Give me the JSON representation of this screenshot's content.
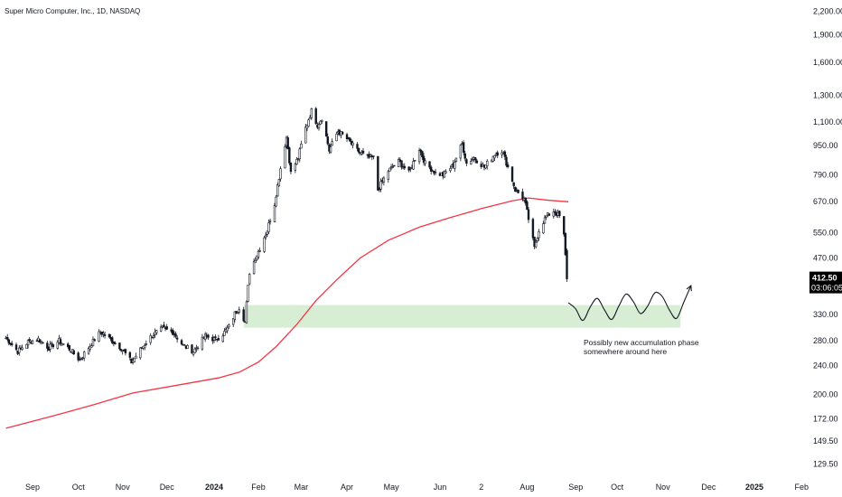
{
  "chart_data": {
    "type": "candlestick",
    "title": "Super Micro Computer, Inc., 1D, NASDAQ",
    "yscale": "log",
    "ylim": [
      118,
      2360
    ],
    "y_ticks": [
      {
        "value": 129.5,
        "label": "129.50"
      },
      {
        "value": 149.5,
        "label": "149.50"
      },
      {
        "value": 172,
        "label": "172.00"
      },
      {
        "value": 200,
        "label": "200.00"
      },
      {
        "value": 240,
        "label": "240.00"
      },
      {
        "value": 280,
        "label": "280.00"
      },
      {
        "value": 330,
        "label": "330.00"
      },
      {
        "value": 470,
        "label": "470.00"
      },
      {
        "value": 550,
        "label": "550.00"
      },
      {
        "value": 670,
        "label": "670.00"
      },
      {
        "value": 790,
        "label": "790.00"
      },
      {
        "value": 950,
        "label": "950.00"
      },
      {
        "value": 1100,
        "label": "1,100.00"
      },
      {
        "value": 1300,
        "label": "1,300.00"
      },
      {
        "value": 1600,
        "label": "1,600.00"
      },
      {
        "value": 1900,
        "label": "1,900.00"
      },
      {
        "value": 2200,
        "label": "2,200.00"
      }
    ],
    "x_ticks": [
      {
        "date": "2023-09-01",
        "label": "Sep",
        "bold": false
      },
      {
        "date": "2023-10-02",
        "label": "Oct",
        "bold": false
      },
      {
        "date": "2023-11-01",
        "label": "Nov",
        "bold": false
      },
      {
        "date": "2023-12-01",
        "label": "Dec",
        "bold": false
      },
      {
        "date": "2024-01-02",
        "label": "2024",
        "bold": true
      },
      {
        "date": "2024-02-01",
        "label": "Feb",
        "bold": false
      },
      {
        "date": "2024-03-01",
        "label": "Mar",
        "bold": false
      },
      {
        "date": "2024-04-01",
        "label": "Apr",
        "bold": false
      },
      {
        "date": "2024-05-01",
        "label": "May",
        "bold": false
      },
      {
        "date": "2024-06-03",
        "label": "Jun",
        "bold": false
      },
      {
        "date": "2024-07-01",
        "label": "2",
        "bold": false
      },
      {
        "date": "2024-08-01",
        "label": "Aug",
        "bold": false
      },
      {
        "date": "2024-09-03",
        "label": "Sep",
        "bold": false
      },
      {
        "date": "2024-10-01",
        "label": "Oct",
        "bold": false
      },
      {
        "date": "2024-11-01",
        "label": "Nov",
        "bold": false
      },
      {
        "date": "2024-12-02",
        "label": "Dec",
        "bold": false
      },
      {
        "date": "2025-01-02",
        "label": "2025",
        "bold": true
      },
      {
        "date": "2025-02-03",
        "label": "Feb",
        "bold": false
      }
    ],
    "price_path": [
      {
        "date": "2023-08-14",
        "close": 285
      },
      {
        "date": "2023-08-22",
        "close": 262
      },
      {
        "date": "2023-08-29",
        "close": 278
      },
      {
        "date": "2023-09-05",
        "close": 283
      },
      {
        "date": "2023-09-12",
        "close": 268
      },
      {
        "date": "2023-09-19",
        "close": 280
      },
      {
        "date": "2023-09-26",
        "close": 266
      },
      {
        "date": "2023-10-03",
        "close": 248
      },
      {
        "date": "2023-10-10",
        "close": 272
      },
      {
        "date": "2023-10-17",
        "close": 296
      },
      {
        "date": "2023-10-24",
        "close": 282
      },
      {
        "date": "2023-10-31",
        "close": 268
      },
      {
        "date": "2023-11-07",
        "close": 245
      },
      {
        "date": "2023-11-14",
        "close": 268
      },
      {
        "date": "2023-11-21",
        "close": 290
      },
      {
        "date": "2023-11-28",
        "close": 302
      },
      {
        "date": "2023-12-05",
        "close": 296
      },
      {
        "date": "2023-12-12",
        "close": 272
      },
      {
        "date": "2023-12-19",
        "close": 262
      },
      {
        "date": "2023-12-27",
        "close": 288
      },
      {
        "date": "2024-01-03",
        "close": 282
      },
      {
        "date": "2024-01-08",
        "close": 292
      },
      {
        "date": "2024-01-12",
        "close": 305
      },
      {
        "date": "2024-01-16",
        "close": 332
      },
      {
        "date": "2024-01-19",
        "close": 345
      },
      {
        "date": "2024-01-23",
        "close": 315
      },
      {
        "date": "2024-01-26",
        "close": 430
      },
      {
        "date": "2024-01-30",
        "close": 470
      },
      {
        "date": "2024-02-02",
        "close": 500
      },
      {
        "date": "2024-02-07",
        "close": 560
      },
      {
        "date": "2024-02-12",
        "close": 660
      },
      {
        "date": "2024-02-15",
        "close": 780
      },
      {
        "date": "2024-02-20",
        "close": 1000
      },
      {
        "date": "2024-02-23",
        "close": 800
      },
      {
        "date": "2024-02-28",
        "close": 880
      },
      {
        "date": "2024-03-04",
        "close": 1060
      },
      {
        "date": "2024-03-08",
        "close": 1180
      },
      {
        "date": "2024-03-12",
        "close": 1080
      },
      {
        "date": "2024-03-15",
        "close": 1130
      },
      {
        "date": "2024-03-20",
        "close": 920
      },
      {
        "date": "2024-03-26",
        "close": 1040
      },
      {
        "date": "2024-04-01",
        "close": 990
      },
      {
        "date": "2024-04-08",
        "close": 920
      },
      {
        "date": "2024-04-15",
        "close": 880
      },
      {
        "date": "2024-04-19",
        "close": 880
      },
      {
        "date": "2024-04-22",
        "close": 720
      },
      {
        "date": "2024-04-29",
        "close": 810
      },
      {
        "date": "2024-05-06",
        "close": 860
      },
      {
        "date": "2024-05-13",
        "close": 800
      },
      {
        "date": "2024-05-20",
        "close": 930
      },
      {
        "date": "2024-05-24",
        "close": 850
      },
      {
        "date": "2024-05-31",
        "close": 800
      },
      {
        "date": "2024-06-05",
        "close": 790
      },
      {
        "date": "2024-06-12",
        "close": 840
      },
      {
        "date": "2024-06-18",
        "close": 960
      },
      {
        "date": "2024-06-21",
        "close": 850
      },
      {
        "date": "2024-06-26",
        "close": 880
      },
      {
        "date": "2024-07-03",
        "close": 830
      },
      {
        "date": "2024-07-10",
        "close": 900
      },
      {
        "date": "2024-07-15",
        "close": 920
      },
      {
        "date": "2024-07-19",
        "close": 830
      },
      {
        "date": "2024-07-24",
        "close": 720
      },
      {
        "date": "2024-07-30",
        "close": 680
      },
      {
        "date": "2024-08-02",
        "close": 600
      },
      {
        "date": "2024-08-06",
        "close": 500
      },
      {
        "date": "2024-08-09",
        "close": 560
      },
      {
        "date": "2024-08-14",
        "close": 610
      },
      {
        "date": "2024-08-19",
        "close": 630
      },
      {
        "date": "2024-08-23",
        "close": 610
      },
      {
        "date": "2024-08-26",
        "close": 540
      },
      {
        "date": "2024-08-28",
        "close": 412.5
      }
    ],
    "moving_average": [
      {
        "date": "2023-08-14",
        "value": 162
      },
      {
        "date": "2023-09-15",
        "value": 175
      },
      {
        "date": "2023-10-13",
        "value": 188
      },
      {
        "date": "2023-11-08",
        "value": 202
      },
      {
        "date": "2023-12-08",
        "value": 212
      },
      {
        "date": "2024-01-05",
        "value": 222
      },
      {
        "date": "2024-01-19",
        "value": 230
      },
      {
        "date": "2024-02-01",
        "value": 245
      },
      {
        "date": "2024-02-13",
        "value": 270
      },
      {
        "date": "2024-02-27",
        "value": 310
      },
      {
        "date": "2024-03-11",
        "value": 360
      },
      {
        "date": "2024-03-25",
        "value": 410
      },
      {
        "date": "2024-04-10",
        "value": 470
      },
      {
        "date": "2024-04-29",
        "value": 525
      },
      {
        "date": "2024-05-20",
        "value": 570
      },
      {
        "date": "2024-06-10",
        "value": 605
      },
      {
        "date": "2024-07-01",
        "value": 640
      },
      {
        "date": "2024-07-22",
        "value": 672
      },
      {
        "date": "2024-08-02",
        "value": 684
      },
      {
        "date": "2024-08-16",
        "value": 674
      },
      {
        "date": "2024-08-29",
        "value": 668
      }
    ],
    "zone": {
      "start": "2024-01-22",
      "end": "2024-11-13",
      "low": 304,
      "high": 350
    },
    "projection": {
      "start": "2024-08-29",
      "end": "2024-11-20",
      "values": [
        355,
        342,
        318,
        345,
        365,
        340,
        320,
        348,
        375,
        358,
        332,
        348,
        378,
        370,
        340,
        322,
        356,
        395
      ]
    },
    "last_price": {
      "value": 412.5,
      "label": "412.50",
      "countdown": "03:06:05"
    },
    "annotation": [
      "Possibly new accumulation phase",
      "somewhere around here"
    ],
    "grid": false,
    "colors": {
      "up": "#131722",
      "down": "#131722",
      "moving_average": "#f23645",
      "zone_fill": "#d7eed5",
      "price_label_bg": "#000000",
      "projection": "#131722"
    }
  }
}
